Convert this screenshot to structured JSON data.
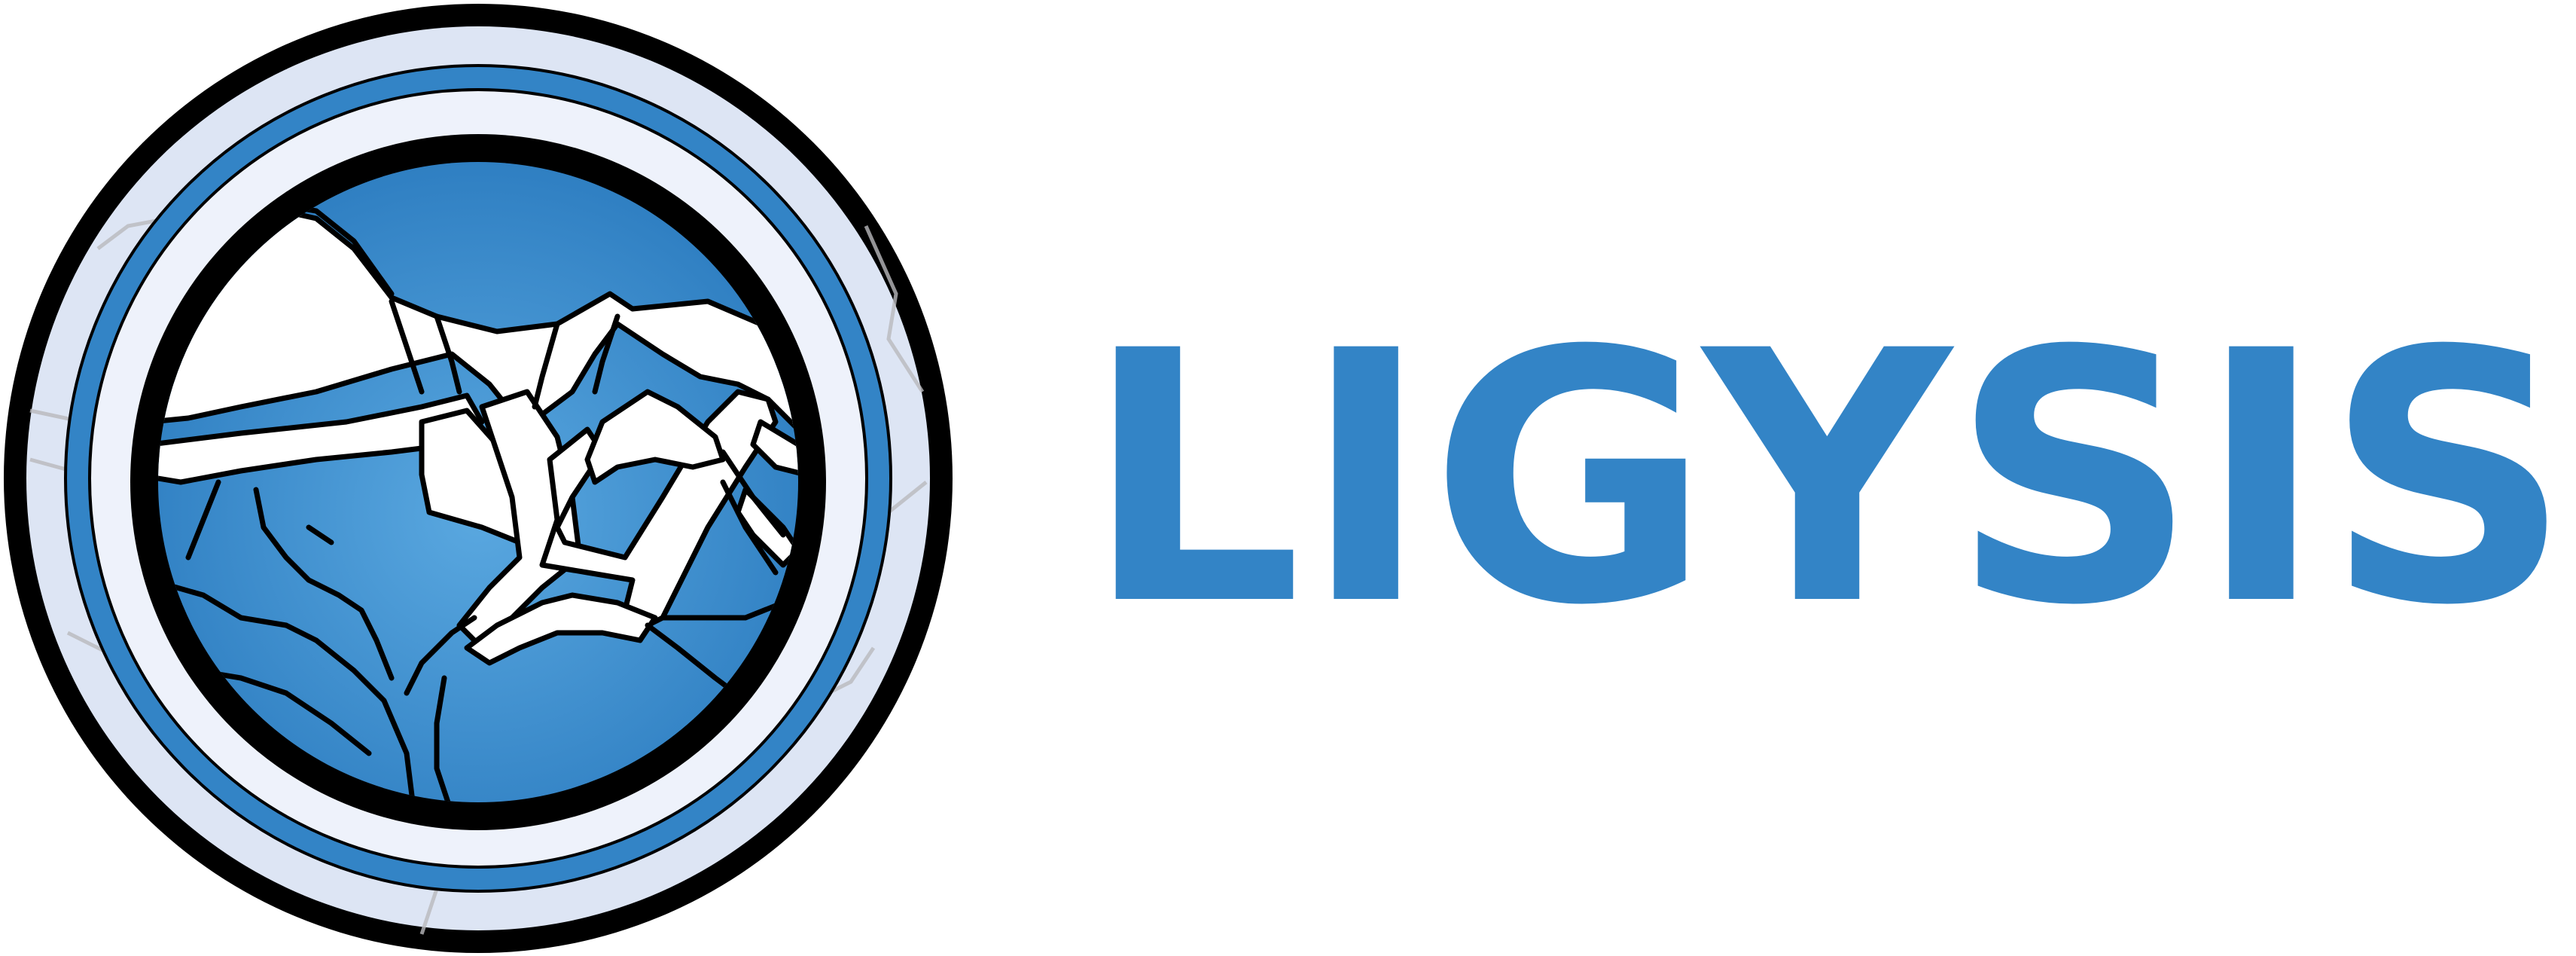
{
  "logo": {
    "wordmark": "LIGYSIS",
    "emblem_icon": "protein-globe-icon",
    "colors": {
      "brand_blue": "#3384c6",
      "outer_ring": "#dde5f4",
      "inner_ring": "#eef2fb",
      "outline": "#000000",
      "protein_fill": "#ffffff",
      "pocket_light": "#5aa8e0"
    }
  }
}
